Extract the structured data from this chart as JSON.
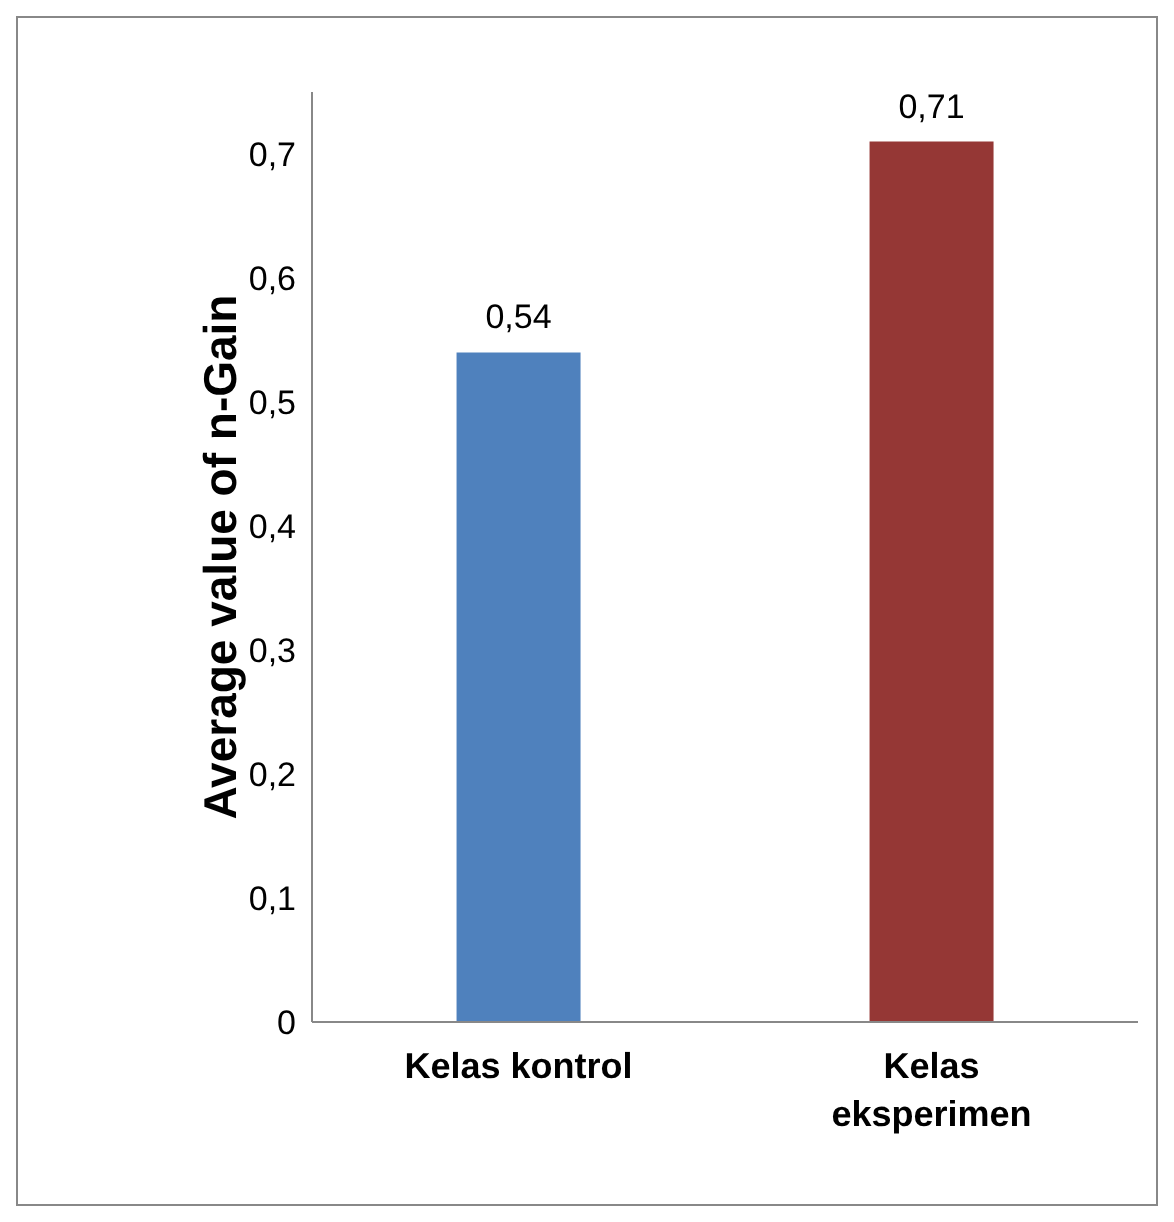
{
  "chart_data": {
    "type": "bar",
    "ylabel": "Average value of n-Gain",
    "categories": [
      "Kelas kontrol",
      "Kelas eksperimen"
    ],
    "values": [
      0.54,
      0.71
    ],
    "colors": [
      "#4f81bd",
      "#953735"
    ],
    "ylim": [
      0,
      0.75
    ],
    "yticks": [
      {
        "value": 0,
        "label": "0"
      },
      {
        "value": 0.1,
        "label": "0,1"
      },
      {
        "value": 0.2,
        "label": "0,2"
      },
      {
        "value": 0.3,
        "label": "0,3"
      },
      {
        "value": 0.4,
        "label": "0,4"
      },
      {
        "value": 0.5,
        "label": "0,5"
      },
      {
        "value": 0.6,
        "label": "0,6"
      },
      {
        "value": 0.7,
        "label": "0,7"
      }
    ],
    "value_labels": [
      "0,54",
      "0,71"
    ],
    "grid": false
  }
}
